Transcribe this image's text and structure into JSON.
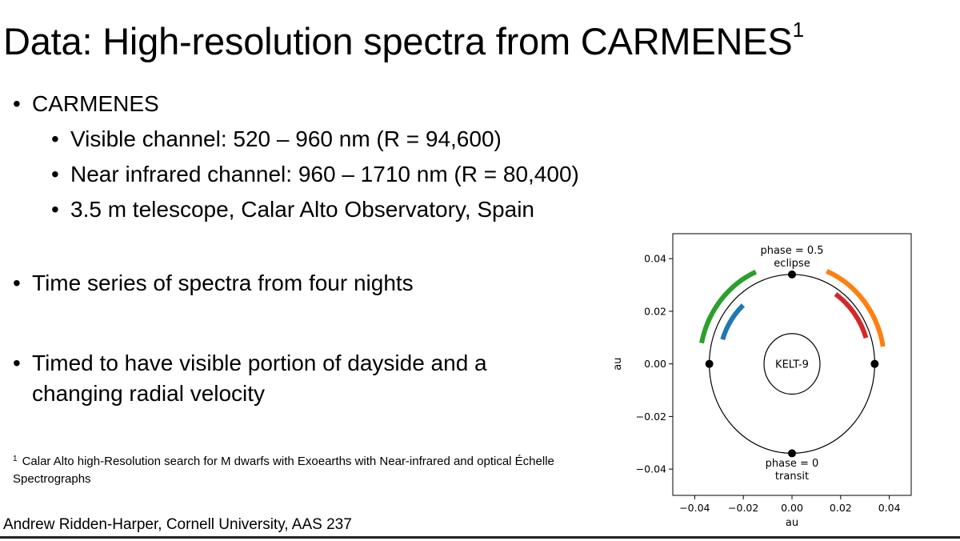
{
  "slide": {
    "title": "Data: High-resolution spectra from CARMENES",
    "title_superscript": "1",
    "bullet_glyph": "•",
    "bullets": {
      "carmenes": "CARMENES",
      "visible": "Visible channel: 520 – 960 nm (R = 94,600)",
      "nir": "Near infrared channel: 960 – 1710 nm (R = 80,400)",
      "telescope": "3.5 m telescope, Calar Alto Observatory, Spain",
      "time_series": "Time series of spectra from four nights",
      "timed_line1": "Timed to have visible portion of dayside and a",
      "timed_line2": "changing radial velocity"
    },
    "footnote": {
      "marker": "1",
      "text": "Calar Alto high-Resolution search for M dwarfs with Exoearths with Near-infrared and optical Échelle Spectrographs"
    },
    "author": "Andrew Ridden-Harper, Cornell University, AAS 237"
  },
  "chart_data": {
    "type": "scatter",
    "title": "",
    "xlabel": "au",
    "ylabel": "au",
    "xlim": [
      -0.049,
      0.049
    ],
    "ylim": [
      -0.05,
      0.0495
    ],
    "xticks": [
      -0.04,
      -0.02,
      0.0,
      0.02,
      0.04
    ],
    "xtick_labels": [
      "−0.04",
      "−0.02",
      "0.00",
      "0.02",
      "0.04"
    ],
    "yticks": [
      -0.04,
      -0.02,
      0.0,
      0.02,
      0.04
    ],
    "ytick_labels": [
      "−0.04",
      "−0.02",
      "0.00",
      "0.02",
      "0.04"
    ],
    "grid": false,
    "orbit_radius": 0.034,
    "star": {
      "label": "KELT-9",
      "radius": 0.0115
    },
    "phase_points": [
      {
        "phase": 0.0,
        "x": 0.0,
        "y": -0.034
      },
      {
        "phase": 0.25,
        "x": -0.034,
        "y": 0.0
      },
      {
        "phase": 0.5,
        "x": 0.0,
        "y": 0.034
      },
      {
        "phase": 0.75,
        "x": 0.034,
        "y": 0.0
      }
    ],
    "annotations": [
      {
        "lines": [
          "phase = 0.5",
          "eclipse"
        ],
        "x": 0.0,
        "y": 0.0395
      },
      {
        "lines": [
          "phase = 0",
          "transit"
        ],
        "x": 0.0,
        "y": -0.0415
      }
    ],
    "arcs": [
      {
        "color": "#2ca02c",
        "radius": 0.038,
        "angle_start_deg": 113,
        "angle_end_deg": 168
      },
      {
        "color": "#1f77b4",
        "radius": 0.03,
        "angle_start_deg": 132,
        "angle_end_deg": 162
      },
      {
        "color": "#ff7f0e",
        "radius": 0.038,
        "angle_start_deg": 10,
        "angle_end_deg": 68
      },
      {
        "color": "#d62728",
        "radius": 0.032,
        "angle_start_deg": 18,
        "angle_end_deg": 56
      }
    ]
  }
}
